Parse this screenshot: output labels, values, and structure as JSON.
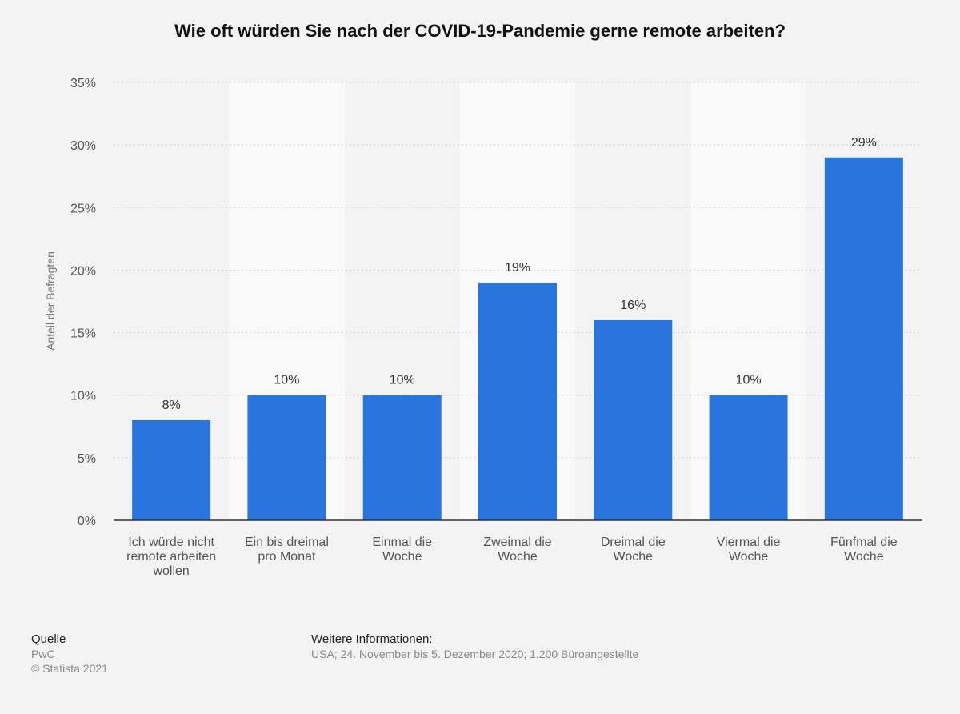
{
  "chart_data": {
    "type": "bar",
    "title": "Wie oft würden Sie nach der COVID-19-Pandemie gerne remote arbeiten?",
    "ylabel": "Anteil der Befragten",
    "xlabel": "",
    "ylim": [
      0,
      35
    ],
    "yticks": [
      0,
      5,
      10,
      15,
      20,
      25,
      30,
      35
    ],
    "ytick_suffix": "%",
    "grid": true,
    "categories": [
      [
        "Ich würde nicht",
        "remote arbeiten",
        "wollen"
      ],
      [
        "Ein bis dreimal",
        "pro Monat"
      ],
      [
        "Einmal die",
        "Woche"
      ],
      [
        "Zweimal die",
        "Woche"
      ],
      [
        "Dreimal die",
        "Woche"
      ],
      [
        "Viermal die",
        "Woche"
      ],
      [
        "Fünfmal die",
        "Woche"
      ]
    ],
    "values": [
      8,
      10,
      10,
      19,
      16,
      10,
      29
    ],
    "data_labels": [
      "8%",
      "10%",
      "10%",
      "19%",
      "16%",
      "10%",
      "29%"
    ],
    "bar_color": "#2876dd"
  },
  "footer": {
    "source_heading": "Quelle",
    "source_lines": [
      "PwC",
      "© Statista 2021"
    ],
    "info_heading": "Weitere Informationen:",
    "info_text": "USA; 24. November bis 5. Dezember 2020; 1.200 Büroangestellte"
  }
}
